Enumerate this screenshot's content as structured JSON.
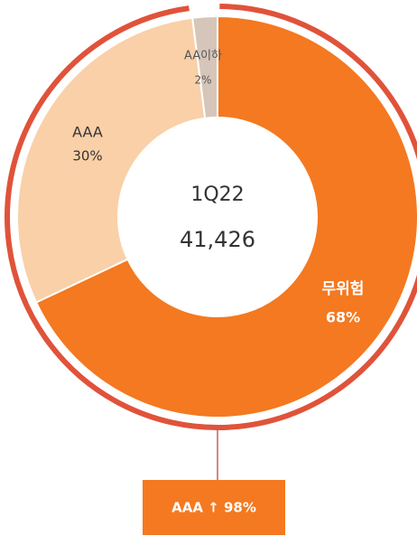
{
  "chart_data": {
    "type": "donut",
    "categories": [
      "무위험",
      "AAA",
      "AA이하"
    ],
    "values": [
      68,
      30,
      2
    ],
    "value_labels": [
      "68%",
      "30%",
      "2%"
    ],
    "colors": [
      "#f47920",
      "#f9d0a8",
      "#d6c6ba"
    ],
    "center_title": "1Q22",
    "center_value": "41,426",
    "callout": "AAA ↑ 98%",
    "ring_color": "#e0533a"
  }
}
